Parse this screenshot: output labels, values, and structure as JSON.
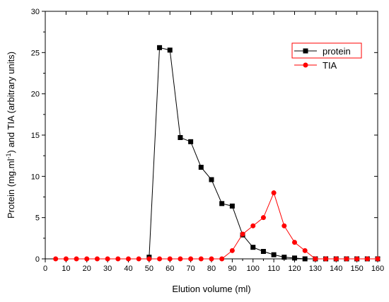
{
  "chart_data": {
    "type": "line",
    "xlabel": "Elution volume (ml)",
    "ylabel_main": "Protein (mg.ml",
    "ylabel_sup": "-1",
    "ylabel_rest": ") and TIA (arbitrary units)",
    "xlim": [
      0,
      160
    ],
    "ylim": [
      0,
      30
    ],
    "x_ticks": [
      0,
      10,
      20,
      30,
      40,
      50,
      60,
      70,
      80,
      90,
      100,
      110,
      120,
      130,
      140,
      150,
      160
    ],
    "y_ticks": [
      0,
      5,
      10,
      15,
      20,
      25,
      30
    ],
    "grid": false,
    "legend_position": "top-right",
    "series": [
      {
        "name": "protein",
        "color": "#000000",
        "marker": "square",
        "points": [
          [
            50,
            0.2
          ],
          [
            55,
            25.6
          ],
          [
            60,
            25.3
          ],
          [
            65,
            14.7
          ],
          [
            70,
            14.2
          ],
          [
            75,
            11.1
          ],
          [
            80,
            9.6
          ],
          [
            85,
            6.7
          ],
          [
            90,
            6.4
          ],
          [
            95,
            2.9
          ],
          [
            100,
            1.4
          ],
          [
            105,
            0.9
          ],
          [
            110,
            0.5
          ],
          [
            115,
            0.2
          ],
          [
            120,
            0.1
          ],
          [
            125,
            0.0
          ],
          [
            130,
            0.0
          ],
          [
            135,
            0.0
          ],
          [
            140,
            0.0
          ],
          [
            145,
            0.0
          ],
          [
            150,
            0.0
          ],
          [
            155,
            0.0
          ],
          [
            160,
            0.0
          ]
        ]
      },
      {
        "name": "TIA",
        "color": "#ff0000",
        "marker": "circle",
        "points": [
          [
            5,
            0
          ],
          [
            10,
            0
          ],
          [
            15,
            0
          ],
          [
            20,
            0
          ],
          [
            25,
            0
          ],
          [
            30,
            0
          ],
          [
            35,
            0
          ],
          [
            40,
            0
          ],
          [
            45,
            0
          ],
          [
            50,
            0
          ],
          [
            55,
            0
          ],
          [
            60,
            0
          ],
          [
            65,
            0
          ],
          [
            70,
            0
          ],
          [
            75,
            0
          ],
          [
            80,
            0
          ],
          [
            85,
            0
          ],
          [
            90,
            1
          ],
          [
            95,
            3
          ],
          [
            100,
            4
          ],
          [
            105,
            5
          ],
          [
            110,
            8
          ],
          [
            115,
            4
          ],
          [
            120,
            2
          ],
          [
            125,
            1
          ],
          [
            130,
            0
          ],
          [
            135,
            0
          ],
          [
            140,
            0
          ],
          [
            145,
            0
          ],
          [
            150,
            0
          ],
          [
            155,
            0
          ],
          [
            160,
            0
          ]
        ]
      }
    ]
  }
}
